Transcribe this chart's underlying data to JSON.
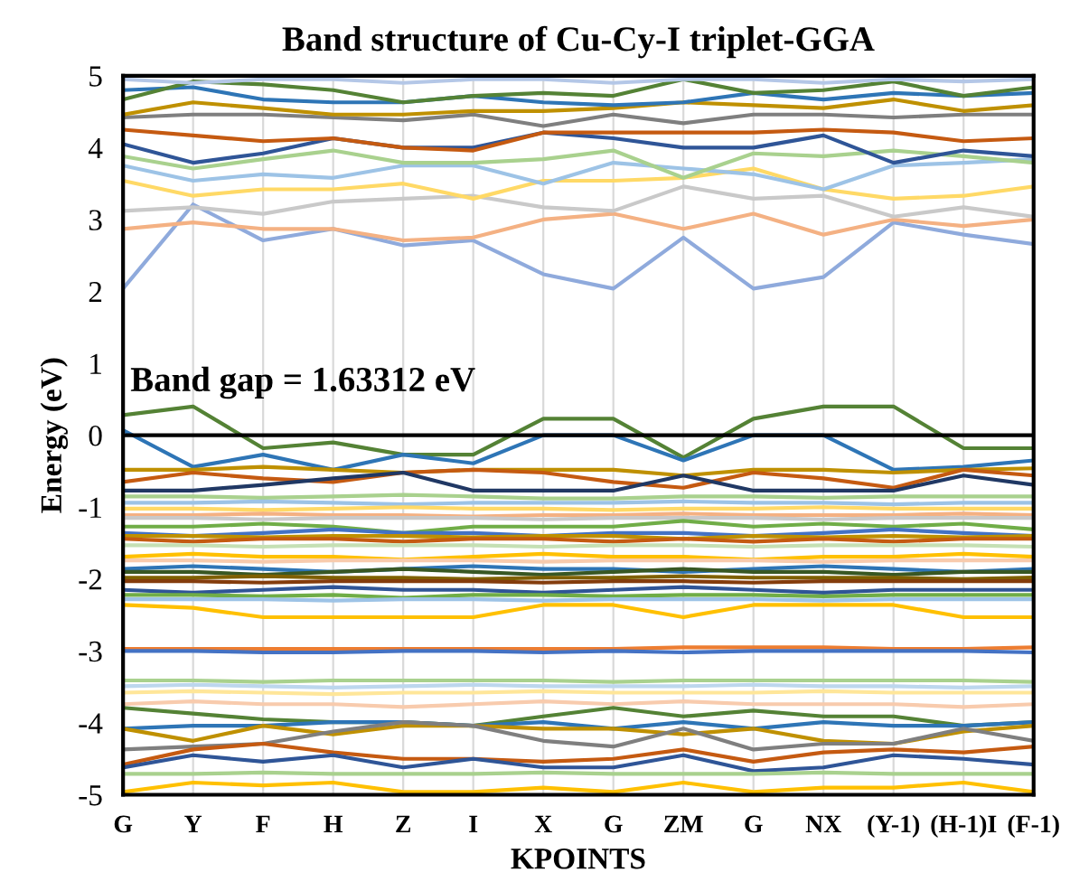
{
  "chart_data": {
    "type": "line",
    "title": "Band structure of Cu-Cy-I triplet-GGA",
    "xlabel": "KPOINTS",
    "ylabel": "Energy (eV)",
    "annotations": [
      "Band gap = 1.63312 eV"
    ],
    "categories": [
      "G",
      "Y",
      "F",
      "H",
      "Z",
      "I",
      "X",
      "G",
      "ZM",
      "G",
      "NX",
      "(Y-1)",
      "(H-1)I",
      "(F-1)"
    ],
    "ylim": [
      -5,
      5
    ],
    "yticks": [
      -5,
      -4,
      -3,
      -2,
      -1,
      0,
      1,
      2,
      3,
      4,
      5
    ],
    "grid": "x",
    "legend": false,
    "marker": "none",
    "line_style": "solid",
    "ref_lines": [
      {
        "axis": "y",
        "value": 0,
        "color": "#000000"
      }
    ],
    "series": [
      {
        "color": "#8faadc",
        "values": [
          2.04,
          3.21,
          2.71,
          2.87,
          2.64,
          2.71,
          2.24,
          2.04,
          2.75,
          2.04,
          2.2,
          2.96,
          2.79,
          2.66
        ]
      },
      {
        "color": "#f4b183",
        "values": [
          2.87,
          2.96,
          2.87,
          2.87,
          2.71,
          2.75,
          3.0,
          3.08,
          2.87,
          3.08,
          2.79,
          3.0,
          2.91,
          3.0
        ]
      },
      {
        "color": "#c9c9c9",
        "values": [
          3.12,
          3.17,
          3.08,
          3.25,
          3.29,
          3.33,
          3.17,
          3.12,
          3.46,
          3.29,
          3.33,
          3.04,
          3.17,
          3.04
        ]
      },
      {
        "color": "#ffd966",
        "values": [
          3.54,
          3.33,
          3.42,
          3.42,
          3.5,
          3.29,
          3.54,
          3.54,
          3.58,
          3.71,
          3.42,
          3.29,
          3.33,
          3.46
        ]
      },
      {
        "color": "#9dc3e6",
        "values": [
          3.75,
          3.54,
          3.63,
          3.58,
          3.75,
          3.75,
          3.5,
          3.79,
          3.71,
          3.63,
          3.42,
          3.75,
          3.79,
          3.84
        ]
      },
      {
        "color": "#a9d18e",
        "values": [
          3.88,
          3.71,
          3.84,
          3.96,
          3.79,
          3.79,
          3.84,
          3.96,
          3.58,
          3.92,
          3.88,
          3.96,
          3.88,
          3.79
        ]
      },
      {
        "color": "#2f5597",
        "values": [
          4.05,
          3.79,
          3.92,
          4.13,
          4.0,
          4.0,
          4.21,
          4.13,
          4.0,
          4.0,
          4.17,
          3.79,
          3.96,
          3.88
        ]
      },
      {
        "color": "#c55a11",
        "values": [
          4.25,
          4.17,
          4.09,
          4.13,
          4.0,
          3.96,
          4.21,
          4.21,
          4.21,
          4.21,
          4.25,
          4.21,
          4.09,
          4.13
        ]
      },
      {
        "color": "#7f7f7f",
        "values": [
          4.42,
          4.46,
          4.46,
          4.42,
          4.38,
          4.46,
          4.3,
          4.46,
          4.34,
          4.46,
          4.46,
          4.42,
          4.46,
          4.46
        ]
      },
      {
        "color": "#bf9000",
        "values": [
          4.46,
          4.63,
          4.55,
          4.46,
          4.46,
          4.51,
          4.51,
          4.55,
          4.63,
          4.59,
          4.55,
          4.67,
          4.51,
          4.59
        ]
      },
      {
        "color": "#2e75b6",
        "values": [
          4.8,
          4.84,
          4.67,
          4.63,
          4.63,
          4.72,
          4.63,
          4.59,
          4.63,
          4.76,
          4.67,
          4.76,
          4.72,
          4.76
        ]
      },
      {
        "color": "#548235",
        "values": [
          4.67,
          4.92,
          4.88,
          4.8,
          4.63,
          4.72,
          4.76,
          4.72,
          4.95,
          4.76,
          4.8,
          4.92,
          4.72,
          4.84
        ]
      },
      {
        "color": "#b4c7e7",
        "values": [
          4.95,
          4.9,
          4.95,
          4.95,
          4.9,
          4.95,
          4.95,
          4.9,
          4.95,
          4.95,
          4.9,
          4.95,
          4.92,
          4.95
        ]
      },
      {
        "color": "#548235",
        "values": [
          0.28,
          0.4,
          -0.18,
          -0.1,
          -0.27,
          -0.27,
          0.23,
          0.23,
          -0.31,
          0.23,
          0.4,
          0.4,
          -0.18,
          -0.18
        ]
      },
      {
        "color": "#2e75b6",
        "values": [
          0.07,
          -0.44,
          -0.27,
          -0.48,
          -0.27,
          -0.39,
          0.0,
          0.0,
          -0.35,
          0.0,
          0.0,
          -0.48,
          -0.44,
          -0.35
        ]
      },
      {
        "color": "#bf9000",
        "values": [
          -0.48,
          -0.48,
          -0.44,
          -0.48,
          -0.52,
          -0.48,
          -0.48,
          -0.48,
          -0.56,
          -0.48,
          -0.48,
          -0.52,
          -0.48,
          -0.46
        ]
      },
      {
        "color": "#c55a11",
        "values": [
          -0.65,
          -0.52,
          -0.6,
          -0.65,
          -0.52,
          -0.48,
          -0.52,
          -0.65,
          -0.73,
          -0.52,
          -0.6,
          -0.73,
          -0.48,
          -0.56
        ]
      },
      {
        "color": "#203864",
        "values": [
          -0.77,
          -0.77,
          -0.69,
          -0.6,
          -0.52,
          -0.77,
          -0.77,
          -0.77,
          -0.56,
          -0.77,
          -0.77,
          -0.77,
          -0.56,
          -0.69
        ]
      },
      {
        "color": "#a9d18e",
        "values": [
          -0.85,
          -0.85,
          -0.87,
          -0.85,
          -0.83,
          -0.85,
          -0.88,
          -0.88,
          -0.85,
          -0.85,
          -0.87,
          -0.85,
          -0.85,
          -0.85
        ]
      },
      {
        "color": "#9dc3e6",
        "values": [
          -0.94,
          -0.94,
          -0.92,
          -0.94,
          -0.96,
          -0.94,
          -0.94,
          -0.94,
          -0.92,
          -0.94,
          -0.94,
          -0.96,
          -0.94,
          -0.94
        ]
      },
      {
        "color": "#ffd966",
        "values": [
          -1.02,
          -1.02,
          -1.04,
          -1.02,
          -1.0,
          -1.02,
          -1.02,
          -1.04,
          -1.02,
          -1.02,
          -1.0,
          -1.02,
          -1.02,
          -1.02
        ]
      },
      {
        "color": "#f4b183",
        "values": [
          -1.11,
          -1.11,
          -1.09,
          -1.11,
          -1.11,
          -1.13,
          -1.11,
          -1.11,
          -1.09,
          -1.11,
          -1.11,
          -1.11,
          -1.09,
          -1.11
        ]
      },
      {
        "color": "#c9c9c9",
        "values": [
          -1.15,
          -1.15,
          -1.17,
          -1.15,
          -1.15,
          -1.15,
          -1.17,
          -1.15,
          -1.15,
          -1.15,
          -1.17,
          -1.15,
          -1.15,
          -1.15
        ]
      },
      {
        "color": "#70ad47",
        "values": [
          -1.27,
          -1.27,
          -1.23,
          -1.27,
          -1.36,
          -1.27,
          -1.27,
          -1.27,
          -1.19,
          -1.27,
          -1.23,
          -1.27,
          -1.23,
          -1.31
        ]
      },
      {
        "color": "#4472c4",
        "values": [
          -1.36,
          -1.4,
          -1.36,
          -1.31,
          -1.36,
          -1.36,
          -1.4,
          -1.36,
          -1.36,
          -1.4,
          -1.36,
          -1.31,
          -1.36,
          -1.4
        ]
      },
      {
        "color": "#bf9000",
        "values": [
          -1.4,
          -1.4,
          -1.42,
          -1.4,
          -1.4,
          -1.42,
          -1.4,
          -1.4,
          -1.44,
          -1.4,
          -1.42,
          -1.4,
          -1.42,
          -1.4
        ]
      },
      {
        "color": "#c55a11",
        "values": [
          -1.44,
          -1.48,
          -1.44,
          -1.44,
          -1.48,
          -1.44,
          -1.44,
          -1.48,
          -1.44,
          -1.48,
          -1.44,
          -1.48,
          -1.44,
          -1.44
        ]
      },
      {
        "color": "#c5e0b4",
        "values": [
          -1.53,
          -1.53,
          -1.55,
          -1.53,
          -1.53,
          -1.53,
          -1.55,
          -1.53,
          -1.53,
          -1.55,
          -1.53,
          -1.53,
          -1.53,
          -1.55
        ]
      },
      {
        "color": "#ffc000",
        "values": [
          -1.69,
          -1.65,
          -1.69,
          -1.69,
          -1.73,
          -1.69,
          -1.65,
          -1.69,
          -1.69,
          -1.73,
          -1.69,
          -1.69,
          -1.65,
          -1.69
        ]
      },
      {
        "color": "#f8cbad",
        "values": [
          -1.74,
          -1.74,
          -1.76,
          -1.74,
          -1.74,
          -1.74,
          -1.76,
          -1.74,
          -1.74,
          -1.74,
          -1.76,
          -1.74,
          -1.74,
          -1.74
        ]
      },
      {
        "color": "#2e75b6",
        "values": [
          -1.86,
          -1.82,
          -1.86,
          -1.9,
          -1.86,
          -1.82,
          -1.86,
          -1.86,
          -1.9,
          -1.86,
          -1.82,
          -1.86,
          -1.9,
          -1.86
        ]
      },
      {
        "color": "#385723",
        "values": [
          -1.9,
          -1.9,
          -1.94,
          -1.9,
          -1.86,
          -1.9,
          -1.94,
          -1.9,
          -1.86,
          -1.9,
          -1.9,
          -1.94,
          -1.9,
          -1.9
        ]
      },
      {
        "color": "#7f6000",
        "values": [
          -1.98,
          -1.98,
          -1.96,
          -1.98,
          -1.98,
          -2.0,
          -1.98,
          -1.98,
          -1.96,
          -1.98,
          -1.98,
          -1.98,
          -2.0,
          -1.98
        ]
      },
      {
        "color": "#843c0c",
        "values": [
          -2.03,
          -2.03,
          -2.05,
          -2.03,
          -2.03,
          -2.03,
          -2.05,
          -2.03,
          -2.03,
          -2.05,
          -2.03,
          -2.03,
          -2.03,
          -2.03
        ]
      },
      {
        "color": "#2f5597",
        "values": [
          -2.15,
          -2.19,
          -2.15,
          -2.11,
          -2.15,
          -2.15,
          -2.19,
          -2.15,
          -2.11,
          -2.15,
          -2.19,
          -2.15,
          -2.15,
          -2.15
        ]
      },
      {
        "color": "#70ad47",
        "values": [
          -2.22,
          -2.22,
          -2.24,
          -2.22,
          -2.26,
          -2.22,
          -2.22,
          -2.24,
          -2.22,
          -2.22,
          -2.24,
          -2.22,
          -2.22,
          -2.22
        ]
      },
      {
        "color": "#9dc3e6",
        "values": [
          -2.28,
          -2.28,
          -2.28,
          -2.3,
          -2.28,
          -2.28,
          -2.3,
          -2.28,
          -2.28,
          -2.28,
          -2.3,
          -2.28,
          -2.28,
          -2.28
        ]
      },
      {
        "color": "#ffc000",
        "values": [
          -2.36,
          -2.4,
          -2.53,
          -2.53,
          -2.53,
          -2.53,
          -2.36,
          -2.36,
          -2.53,
          -2.36,
          -2.36,
          -2.36,
          -2.53,
          -2.53
        ]
      },
      {
        "color": "#ed7d31",
        "values": [
          -2.97,
          -2.97,
          -2.97,
          -2.97,
          -2.97,
          -2.97,
          -2.97,
          -2.97,
          -2.95,
          -2.95,
          -2.95,
          -2.97,
          -2.97,
          -2.95
        ]
      },
      {
        "color": "#4472c4",
        "values": [
          -3.0,
          -3.0,
          -3.02,
          -3.02,
          -3.0,
          -3.0,
          -3.02,
          -3.0,
          -3.02,
          -3.0,
          -3.0,
          -3.0,
          -3.0,
          -3.02
        ]
      },
      {
        "color": "#a9d18e",
        "values": [
          -3.41,
          -3.41,
          -3.43,
          -3.41,
          -3.41,
          -3.41,
          -3.41,
          -3.43,
          -3.41,
          -3.41,
          -3.41,
          -3.41,
          -3.41,
          -3.43
        ]
      },
      {
        "color": "#bdd7ee",
        "values": [
          -3.49,
          -3.47,
          -3.49,
          -3.51,
          -3.49,
          -3.47,
          -3.49,
          -3.49,
          -3.49,
          -3.47,
          -3.49,
          -3.49,
          -3.51,
          -3.49
        ]
      },
      {
        "color": "#ffe699",
        "values": [
          -3.58,
          -3.56,
          -3.58,
          -3.6,
          -3.58,
          -3.58,
          -3.56,
          -3.58,
          -3.58,
          -3.58,
          -3.56,
          -3.58,
          -3.58,
          -3.58
        ]
      },
      {
        "color": "#f8cbad",
        "values": [
          -3.74,
          -3.7,
          -3.74,
          -3.74,
          -3.78,
          -3.74,
          -3.7,
          -3.74,
          -3.7,
          -3.74,
          -3.74,
          -3.74,
          -3.78,
          -3.74
        ]
      },
      {
        "color": "#548235",
        "values": [
          -3.79,
          -3.87,
          -3.95,
          -3.99,
          -3.99,
          -4.04,
          -3.91,
          -3.79,
          -3.91,
          -3.83,
          -3.91,
          -3.91,
          -4.04,
          -3.99
        ]
      },
      {
        "color": "#2e75b6",
        "values": [
          -4.08,
          -4.04,
          -4.04,
          -3.99,
          -3.99,
          -4.04,
          -3.99,
          -4.08,
          -3.99,
          -4.08,
          -3.99,
          -4.04,
          -4.04,
          -3.99
        ]
      },
      {
        "color": "#bf9000",
        "values": [
          -4.08,
          -4.25,
          -4.04,
          -4.16,
          -4.04,
          -4.04,
          -4.08,
          -4.08,
          -4.16,
          -4.08,
          -4.25,
          -4.29,
          -4.12,
          -4.04
        ]
      },
      {
        "color": "#7f7f7f",
        "values": [
          -4.37,
          -4.33,
          -4.29,
          -4.12,
          -3.99,
          -4.04,
          -4.25,
          -4.33,
          -4.08,
          -4.37,
          -4.29,
          -4.29,
          -4.08,
          -4.25
        ]
      },
      {
        "color": "#c55a11",
        "values": [
          -4.58,
          -4.37,
          -4.29,
          -4.41,
          -4.5,
          -4.5,
          -4.54,
          -4.5,
          -4.37,
          -4.54,
          -4.41,
          -4.37,
          -4.41,
          -4.33
        ]
      },
      {
        "color": "#2f5597",
        "values": [
          -4.62,
          -4.45,
          -4.54,
          -4.45,
          -4.62,
          -4.5,
          -4.62,
          -4.62,
          -4.45,
          -4.67,
          -4.62,
          -4.45,
          -4.5,
          -4.58
        ]
      },
      {
        "color": "#a9d18e",
        "values": [
          -4.71,
          -4.71,
          -4.69,
          -4.71,
          -4.71,
          -4.71,
          -4.69,
          -4.71,
          -4.71,
          -4.71,
          -4.69,
          -4.71,
          -4.71,
          -4.71
        ]
      },
      {
        "color": "#ffc000",
        "values": [
          -4.96,
          -4.83,
          -4.87,
          -4.83,
          -4.96,
          -4.96,
          -4.9,
          -4.96,
          -4.83,
          -4.96,
          -4.9,
          -4.9,
          -4.83,
          -4.96
        ]
      }
    ]
  }
}
